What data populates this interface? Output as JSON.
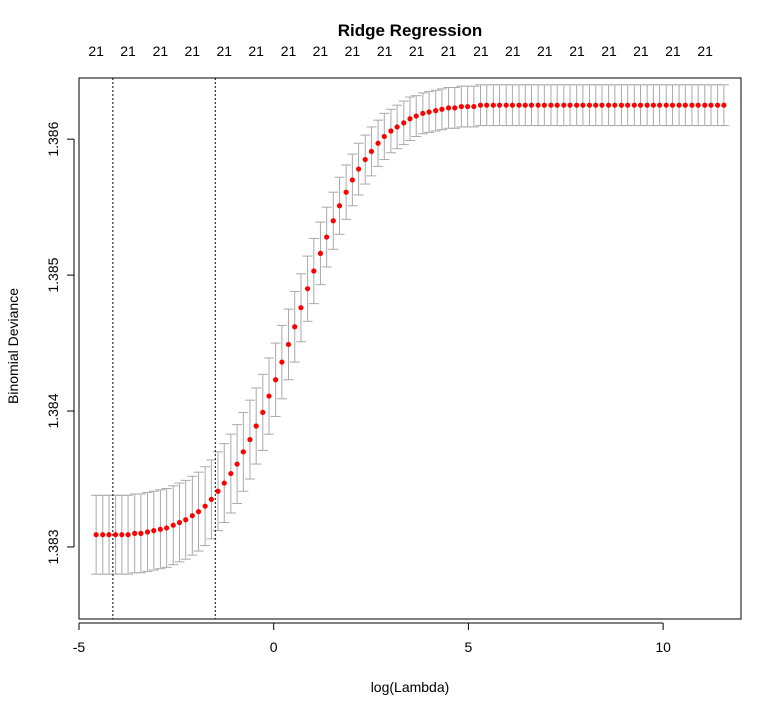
{
  "chart_data": {
    "type": "scatter",
    "title": "Ridge Regression",
    "xlabel": "log(Lambda)",
    "ylabel": "Binomial Deviance",
    "xlim": [
      -5.0,
      12.0
    ],
    "ylim": [
      1.38247,
      1.38645
    ],
    "x_ticks": [
      -5,
      0,
      5,
      10
    ],
    "x_tick_labels": [
      "-5",
      "0",
      "5",
      "10"
    ],
    "y_ticks": [
      1.383,
      1.384,
      1.385,
      1.386
    ],
    "y_tick_labels": [
      "1.383",
      "1.384",
      "1.385",
      "1.386"
    ],
    "top_axis": {
      "positions": [
        -4.56,
        -3.74,
        -2.91,
        -2.09,
        -1.27,
        -0.45,
        0.38,
        1.2,
        2.02,
        2.85,
        3.67,
        4.49,
        5.32,
        6.14,
        6.96,
        7.79,
        8.61,
        9.43,
        10.25,
        11.08
      ],
      "labels": [
        "21",
        "21",
        "21",
        "21",
        "21",
        "21",
        "21",
        "21",
        "21",
        "21",
        "21",
        "21",
        "21",
        "21",
        "21",
        "21",
        "21",
        "21",
        "21",
        "21"
      ]
    },
    "reference_lines": [
      -4.13,
      -1.5
    ],
    "point_color": "#ff0000",
    "errorbar_color": "#a9a9a9",
    "series": [
      {
        "x": [
          -4.56,
          -4.39,
          -4.23,
          -4.06,
          -3.9,
          -3.74,
          -3.57,
          -3.41,
          -3.24,
          -3.08,
          -2.91,
          -2.75,
          -2.58,
          -2.42,
          -2.26,
          -2.09,
          -1.93,
          -1.76,
          -1.6,
          -1.43,
          -1.27,
          -1.1,
          -0.94,
          -0.78,
          -0.61,
          -0.45,
          -0.28,
          -0.12,
          0.05,
          0.21,
          0.38,
          0.54,
          0.7,
          0.87,
          1.03,
          1.2,
          1.36,
          1.53,
          1.69,
          1.86,
          2.02,
          2.18,
          2.35,
          2.51,
          2.68,
          2.84,
          3.01,
          3.17,
          3.34,
          3.5,
          3.66,
          3.83,
          3.99,
          4.16,
          4.32,
          4.49,
          4.65,
          4.82,
          4.98,
          5.14,
          5.31,
          5.47,
          5.64,
          5.8,
          5.97,
          6.13,
          6.3,
          6.46,
          6.62,
          6.79,
          6.95,
          7.12,
          7.28,
          7.45,
          7.61,
          7.78,
          7.94,
          8.11,
          8.27,
          8.43,
          8.6,
          8.76,
          8.93,
          9.09,
          9.26,
          9.42,
          9.59,
          9.75,
          9.91,
          10.08,
          10.24,
          10.41,
          10.57,
          10.74,
          10.9,
          11.07,
          11.23,
          11.4,
          11.56
        ],
        "y": [
          1.38309,
          1.38309,
          1.38309,
          1.38309,
          1.38309,
          1.38309,
          1.3831,
          1.3831,
          1.38311,
          1.38312,
          1.38313,
          1.38314,
          1.38316,
          1.38318,
          1.3832,
          1.38323,
          1.38326,
          1.3833,
          1.38335,
          1.38341,
          1.38347,
          1.38354,
          1.38361,
          1.3837,
          1.38379,
          1.38389,
          1.38399,
          1.38411,
          1.38423,
          1.38436,
          1.38449,
          1.38462,
          1.38476,
          1.3849,
          1.38503,
          1.38516,
          1.38528,
          1.3854,
          1.38551,
          1.38561,
          1.3857,
          1.38578,
          1.38585,
          1.38591,
          1.38597,
          1.38602,
          1.38606,
          1.38609,
          1.38612,
          1.38615,
          1.38617,
          1.38619,
          1.3862,
          1.38621,
          1.38622,
          1.38623,
          1.38623,
          1.38624,
          1.38624,
          1.38624,
          1.38625,
          1.38625,
          1.38625,
          1.38625,
          1.38625,
          1.38625,
          1.38625,
          1.38625,
          1.38625,
          1.38625,
          1.38625,
          1.38625,
          1.38625,
          1.38625,
          1.38625,
          1.38625,
          1.38625,
          1.38625,
          1.38625,
          1.38625,
          1.38625,
          1.38625,
          1.38625,
          1.38625,
          1.38625,
          1.38625,
          1.38625,
          1.38625,
          1.38625,
          1.38625,
          1.38625,
          1.38625,
          1.38625,
          1.38625,
          1.38625,
          1.38625,
          1.38625,
          1.38625,
          1.38625
        ],
        "err": [
          0.00029,
          0.00029,
          0.00029,
          0.00029,
          0.00029,
          0.00029,
          0.00029,
          0.00029,
          0.00029,
          0.00029,
          0.00029,
          0.00029,
          0.00029,
          0.00029,
          0.00029,
          0.00029,
          0.00029,
          0.00029,
          0.00029,
          0.00029,
          0.00029,
          0.00029,
          0.00029,
          0.00029,
          0.00029,
          0.00028,
          0.00028,
          0.00028,
          0.00027,
          0.00027,
          0.00026,
          0.00026,
          0.00025,
          0.00024,
          0.00024,
          0.00023,
          0.00022,
          0.00021,
          0.00021,
          0.0002,
          0.00019,
          0.00019,
          0.00018,
          0.00018,
          0.00017,
          0.00017,
          0.00016,
          0.00016,
          0.00016,
          0.00016,
          0.00015,
          0.00015,
          0.00015,
          0.00015,
          0.00015,
          0.00015,
          0.00015,
          0.00015,
          0.00015,
          0.00015,
          0.00015,
          0.00015,
          0.00015,
          0.00015,
          0.00015,
          0.00015,
          0.00015,
          0.00015,
          0.00015,
          0.00015,
          0.00015,
          0.00015,
          0.00015,
          0.00015,
          0.00015,
          0.00015,
          0.00015,
          0.00015,
          0.00015,
          0.00015,
          0.00015,
          0.00015,
          0.00015,
          0.00015,
          0.00015,
          0.00015,
          0.00015,
          0.00015,
          0.00015,
          0.00015,
          0.00015,
          0.00015,
          0.00015,
          0.00015,
          0.00015,
          0.00015,
          0.00015,
          0.00015,
          0.00015
        ]
      }
    ]
  }
}
